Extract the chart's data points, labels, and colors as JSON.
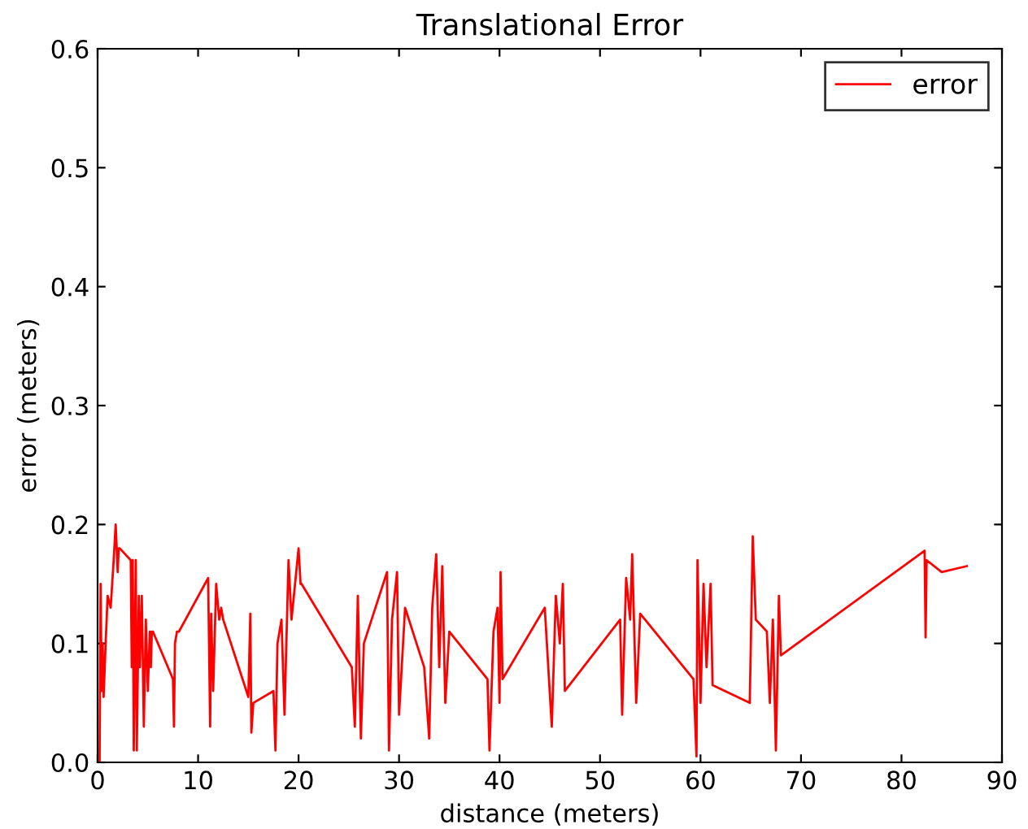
{
  "chart_data": {
    "type": "line",
    "title": "Translational Error",
    "xlabel": "distance (meters)",
    "ylabel": "error (meters)",
    "series": [
      {
        "name": "error",
        "color": "#ff0000",
        "x": [
          0.2,
          0.3,
          0.4,
          0.5,
          0.6,
          0.8,
          1.0,
          1.3,
          1.6,
          1.8,
          2.0,
          2.1,
          2.2,
          3.3,
          3.4,
          3.5,
          3.6,
          3.8,
          3.9,
          4.1,
          4.2,
          4.4,
          4.6,
          4.8,
          5.0,
          5.2,
          5.3,
          5.4,
          5.5,
          7.5,
          7.6,
          7.7,
          7.9,
          8.1,
          11.0,
          11.2,
          11.3,
          11.5,
          11.8,
          12.1,
          12.3,
          12.5,
          15.0,
          15.2,
          15.3,
          15.5,
          17.5,
          17.7,
          17.9,
          18.3,
          18.6,
          19.0,
          19.3,
          20.0,
          20.2,
          20.3,
          25.3,
          25.6,
          25.9,
          26.2,
          26.5,
          28.8,
          29.0,
          29.3,
          29.8,
          30.0,
          30.6,
          32.5,
          33.0,
          33.3,
          33.7,
          34.0,
          34.3,
          34.6,
          35.0,
          38.8,
          39.0,
          39.4,
          39.8,
          40.0,
          40.1,
          40.3,
          44.5,
          45.2,
          45.6,
          46.0,
          46.3,
          46.5,
          52.0,
          52.2,
          52.6,
          53.0,
          53.2,
          53.6,
          54.0,
          59.3,
          59.6,
          59.7,
          60.0,
          60.3,
          60.6,
          61.0,
          61.2,
          64.9,
          65.2,
          65.5,
          66.6,
          66.9,
          67.2,
          67.5,
          67.8,
          68.0,
          82.3,
          82.4,
          82.5,
          84.0,
          86.5
        ],
        "values": [
          0.0,
          0.15,
          0.06,
          0.1,
          0.055,
          0.1,
          0.14,
          0.13,
          0.17,
          0.2,
          0.16,
          0.18,
          0.18,
          0.17,
          0.08,
          0.17,
          0.01,
          0.17,
          0.01,
          0.14,
          0.08,
          0.14,
          0.03,
          0.12,
          0.06,
          0.11,
          0.08,
          0.11,
          0.11,
          0.07,
          0.03,
          0.1,
          0.11,
          0.11,
          0.155,
          0.03,
          0.125,
          0.06,
          0.15,
          0.12,
          0.13,
          0.12,
          0.055,
          0.125,
          0.025,
          0.05,
          0.06,
          0.01,
          0.1,
          0.12,
          0.04,
          0.17,
          0.12,
          0.18,
          0.15,
          0.15,
          0.08,
          0.03,
          0.14,
          0.02,
          0.1,
          0.16,
          0.01,
          0.12,
          0.16,
          0.04,
          0.13,
          0.08,
          0.02,
          0.13,
          0.175,
          0.08,
          0.165,
          0.05,
          0.11,
          0.07,
          0.01,
          0.11,
          0.13,
          0.05,
          0.16,
          0.07,
          0.13,
          0.03,
          0.14,
          0.1,
          0.15,
          0.06,
          0.12,
          0.04,
          0.155,
          0.12,
          0.175,
          0.05,
          0.125,
          0.07,
          0.005,
          0.17,
          0.05,
          0.15,
          0.08,
          0.15,
          0.065,
          0.05,
          0.19,
          0.12,
          0.11,
          0.05,
          0.12,
          0.01,
          0.14,
          0.09,
          0.178,
          0.105,
          0.17,
          0.16,
          0.165
        ]
      }
    ],
    "xlim": [
      0,
      90
    ],
    "xticks": [
      0,
      10,
      20,
      30,
      40,
      50,
      60,
      70,
      80,
      90
    ],
    "ylim": [
      0,
      0.6
    ],
    "yticks": [
      {
        "value": 0,
        "label": "0.0"
      },
      {
        "value": 0.1,
        "label": "0.1"
      },
      {
        "value": 0.2,
        "label": "0.2"
      },
      {
        "value": 0.3,
        "label": "0.3"
      },
      {
        "value": 0.4,
        "label": "0.4"
      },
      {
        "value": 0.5,
        "label": "0.5"
      },
      {
        "value": 0.6,
        "label": "0.6"
      }
    ],
    "legend": "top right",
    "marker": "none",
    "line_style": "solid"
  }
}
